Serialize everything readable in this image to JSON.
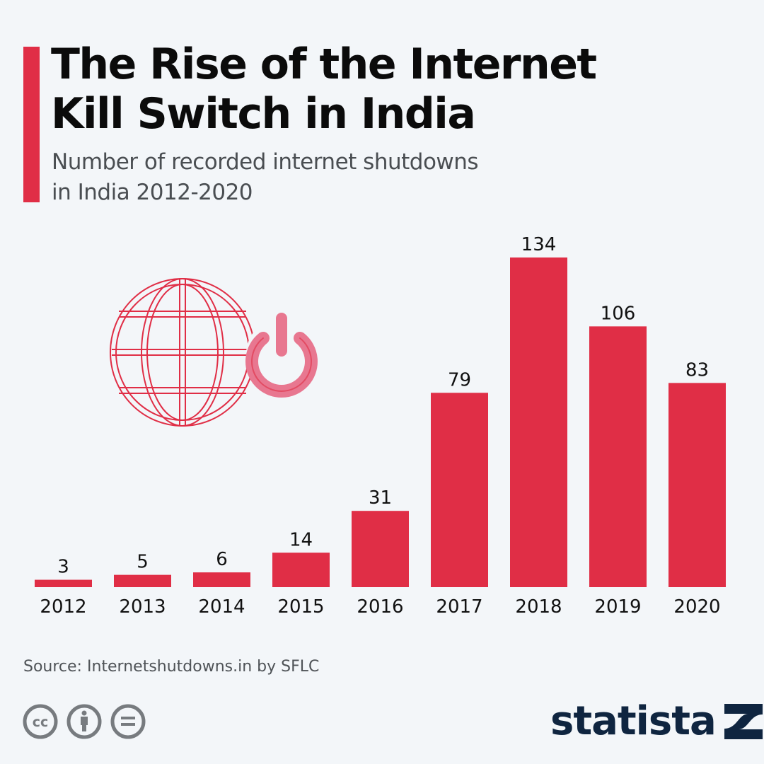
{
  "header": {
    "title_line1": "The Rise of the Internet",
    "title_line2": "Kill Switch in India",
    "subtitle_line1": "Number of recorded internet shutdowns",
    "subtitle_line2": "in India 2012-2020"
  },
  "colors": {
    "accent": "#e02e46",
    "bar": "#e02e46",
    "background": "#f3f6f9",
    "brand": "#0f2540",
    "icon_gray": "#777b7f"
  },
  "chart_data": {
    "type": "bar",
    "title": "The Rise of the Internet Kill Switch in India",
    "subtitle": "Number of recorded internet shutdowns in India 2012-2020",
    "categories": [
      "2012",
      "2013",
      "2014",
      "2015",
      "2016",
      "2017",
      "2018",
      "2019",
      "2020"
    ],
    "values": [
      3,
      5,
      6,
      14,
      31,
      79,
      134,
      106,
      83
    ],
    "xlabel": "",
    "ylabel": "",
    "ylim": [
      0,
      134
    ],
    "grid": false,
    "data_labels": true,
    "legend": "none"
  },
  "illustration": {
    "icons": [
      "globe-icon",
      "power-icon"
    ]
  },
  "footer": {
    "source": "Source: Internetshutdowns.in by SFLC",
    "license_icons": [
      "cc-icon",
      "attribution-icon",
      "no-derivatives-icon"
    ],
    "brand": "statista"
  }
}
